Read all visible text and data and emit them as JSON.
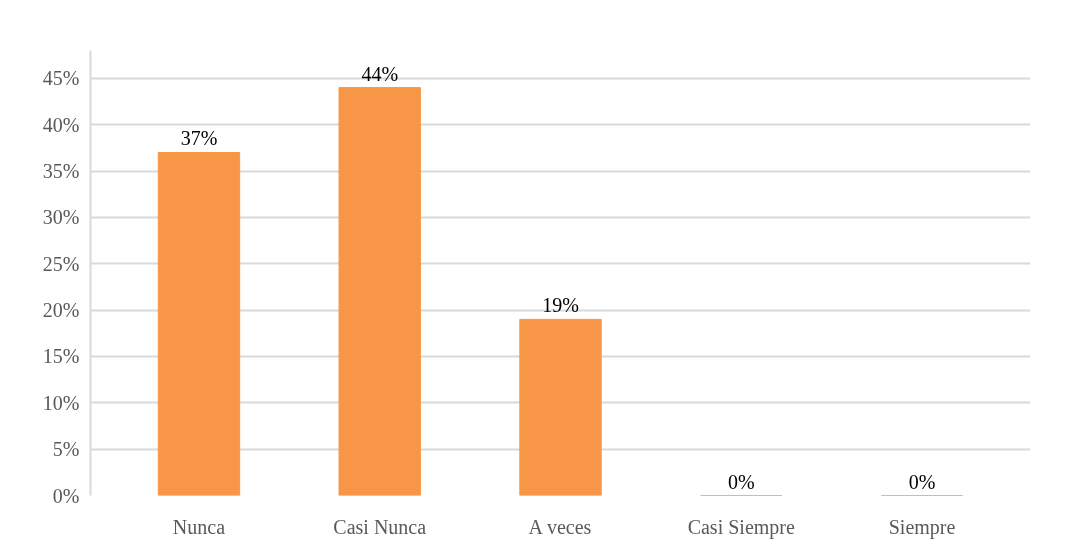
{
  "chart_data": {
    "type": "bar",
    "categories": [
      "Nunca",
      "Casi Nunca",
      "A veces",
      "Casi Siempre",
      "Siempre"
    ],
    "values": [
      37,
      44,
      19,
      0,
      0
    ],
    "value_labels": [
      "37%",
      "44%",
      "19%",
      "0%",
      "0%"
    ],
    "color": "#f79646",
    "ylim": [
      0,
      48
    ],
    "yticks": [
      {
        "value": 0,
        "label": "0%"
      },
      {
        "value": 5,
        "label": "5%"
      },
      {
        "value": 10,
        "label": "10%"
      },
      {
        "value": 15,
        "label": "15%"
      },
      {
        "value": 20,
        "label": "20%"
      },
      {
        "value": 25,
        "label": "25%"
      },
      {
        "value": 30,
        "label": "30%"
      },
      {
        "value": 35,
        "label": "35%"
      },
      {
        "value": 40,
        "label": "40%"
      },
      {
        "value": 45,
        "label": "45%"
      }
    ],
    "grid": "y"
  }
}
